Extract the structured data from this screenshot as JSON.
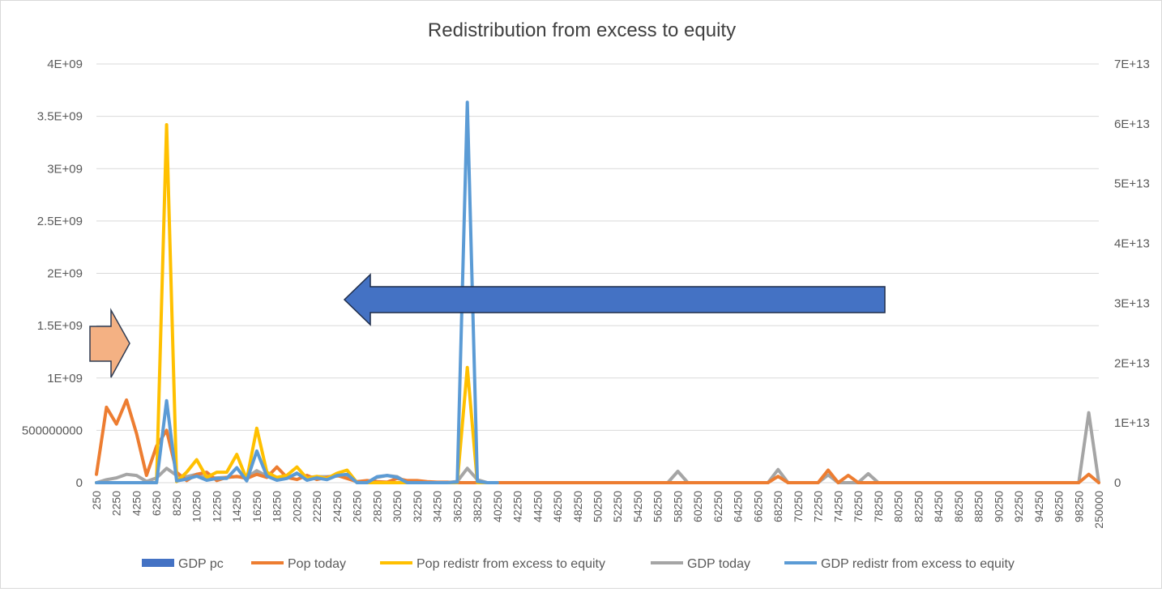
{
  "chart_data": {
    "type": "line",
    "title": "Redistribution from excess to equity",
    "xlabel": "",
    "ylabel": "",
    "legend_position": "bottom",
    "grid": true,
    "y_left": {
      "range": [
        0,
        4000000000
      ],
      "ticks": [
        0,
        500000000,
        1000000000,
        1500000000,
        2000000000,
        2500000000,
        3000000000,
        3500000000,
        4000000000
      ],
      "tick_labels": [
        "0",
        "500000000",
        "1E+09",
        "1.5E+09",
        "2E+09",
        "2.5E+09",
        "3E+09",
        "3.5E+09",
        "4E+09"
      ]
    },
    "y_right": {
      "range": [
        0,
        70000000000000
      ],
      "ticks": [
        0,
        10000000000000,
        20000000000000,
        30000000000000,
        40000000000000,
        50000000000000,
        60000000000000,
        70000000000000
      ],
      "tick_labels": [
        "0",
        "1E+13",
        "2E+13",
        "3E+13",
        "4E+13",
        "5E+13",
        "6E+13",
        "7E+13"
      ]
    },
    "x_tick_labels": [
      "250",
      "2250",
      "4250",
      "6250",
      "8250",
      "10250",
      "12250",
      "14250",
      "16250",
      "18250",
      "20250",
      "22250",
      "24250",
      "26250",
      "28250",
      "30250",
      "32250",
      "34250",
      "36250",
      "38250",
      "40250",
      "42250",
      "44250",
      "46250",
      "48250",
      "50250",
      "52250",
      "54250",
      "56250",
      "58250",
      "60250",
      "62250",
      "64250",
      "66250",
      "68250",
      "70250",
      "72250",
      "74250",
      "76250",
      "78250",
      "80250",
      "82250",
      "84250",
      "86250",
      "88250",
      "90250",
      "92250",
      "94250",
      "96250",
      "98250",
      "250000"
    ],
    "x_count": 101,
    "series": [
      {
        "name": "GDP pc",
        "axis": "left",
        "color": "#4472c4",
        "points": []
      },
      {
        "name": "Pop today",
        "axis": "left",
        "color": "#ed7d31",
        "points": [
          [
            0,
            80000000
          ],
          [
            1,
            720000000
          ],
          [
            2,
            560000000
          ],
          [
            3,
            790000000
          ],
          [
            4,
            470000000
          ],
          [
            5,
            70000000
          ],
          [
            6,
            350000000
          ],
          [
            7,
            500000000
          ],
          [
            8,
            100000000
          ],
          [
            9,
            20000000
          ],
          [
            10,
            80000000
          ],
          [
            11,
            100000000
          ],
          [
            12,
            20000000
          ],
          [
            13,
            50000000
          ],
          [
            14,
            60000000
          ],
          [
            15,
            40000000
          ],
          [
            16,
            80000000
          ],
          [
            17,
            50000000
          ],
          [
            18,
            150000000
          ],
          [
            19,
            50000000
          ],
          [
            20,
            30000000
          ],
          [
            21,
            70000000
          ],
          [
            22,
            30000000
          ],
          [
            23,
            50000000
          ],
          [
            24,
            70000000
          ],
          [
            25,
            40000000
          ],
          [
            26,
            10000000
          ],
          [
            27,
            20000000
          ],
          [
            28,
            10000000
          ],
          [
            29,
            5000000
          ],
          [
            30,
            40000000
          ],
          [
            31,
            20000000
          ],
          [
            32,
            20000000
          ],
          [
            33,
            10000000
          ],
          [
            34,
            5000000
          ],
          [
            35,
            5000000
          ],
          [
            36,
            0
          ],
          [
            37,
            0
          ],
          [
            38,
            0
          ],
          [
            39,
            0
          ],
          [
            40,
            0
          ],
          [
            41,
            0
          ],
          [
            42,
            0
          ],
          [
            43,
            0
          ],
          [
            44,
            0
          ],
          [
            45,
            0
          ],
          [
            46,
            0
          ],
          [
            47,
            0
          ],
          [
            48,
            0
          ],
          [
            49,
            0
          ],
          [
            50,
            0
          ],
          [
            51,
            0
          ],
          [
            52,
            0
          ],
          [
            53,
            0
          ],
          [
            54,
            0
          ],
          [
            55,
            0
          ],
          [
            56,
            0
          ],
          [
            57,
            0
          ],
          [
            58,
            0
          ],
          [
            59,
            0
          ],
          [
            60,
            0
          ],
          [
            61,
            0
          ],
          [
            62,
            0
          ],
          [
            63,
            0
          ],
          [
            64,
            0
          ],
          [
            65,
            0
          ],
          [
            66,
            0
          ],
          [
            67,
            0
          ],
          [
            68,
            60000000
          ],
          [
            69,
            0
          ],
          [
            70,
            0
          ],
          [
            71,
            0
          ],
          [
            72,
            0
          ],
          [
            73,
            120000000
          ],
          [
            74,
            0
          ],
          [
            75,
            70000000
          ],
          [
            76,
            0
          ],
          [
            77,
            0
          ],
          [
            78,
            0
          ],
          [
            79,
            0
          ],
          [
            80,
            0
          ],
          [
            81,
            0
          ],
          [
            82,
            0
          ],
          [
            83,
            0
          ],
          [
            84,
            0
          ],
          [
            85,
            0
          ],
          [
            86,
            0
          ],
          [
            87,
            0
          ],
          [
            88,
            0
          ],
          [
            89,
            0
          ],
          [
            90,
            0
          ],
          [
            91,
            0
          ],
          [
            92,
            0
          ],
          [
            93,
            0
          ],
          [
            94,
            0
          ],
          [
            95,
            0
          ],
          [
            96,
            0
          ],
          [
            97,
            0
          ],
          [
            98,
            0
          ],
          [
            99,
            80000000
          ],
          [
            100,
            0
          ]
        ]
      },
      {
        "name": "Pop redistr from excess to equity",
        "axis": "left",
        "color": "#ffc000",
        "points": [
          [
            0,
            0
          ],
          [
            1,
            0
          ],
          [
            2,
            0
          ],
          [
            3,
            0
          ],
          [
            4,
            0
          ],
          [
            5,
            0
          ],
          [
            6,
            0
          ],
          [
            7,
            3420000000
          ],
          [
            8,
            10000000
          ],
          [
            9,
            100000000
          ],
          [
            10,
            220000000
          ],
          [
            11,
            50000000
          ],
          [
            12,
            100000000
          ],
          [
            13,
            100000000
          ],
          [
            14,
            270000000
          ],
          [
            15,
            30000000
          ],
          [
            16,
            520000000
          ],
          [
            17,
            100000000
          ],
          [
            18,
            50000000
          ],
          [
            19,
            70000000
          ],
          [
            20,
            150000000
          ],
          [
            21,
            40000000
          ],
          [
            22,
            60000000
          ],
          [
            23,
            40000000
          ],
          [
            24,
            90000000
          ],
          [
            25,
            120000000
          ],
          [
            26,
            0
          ],
          [
            27,
            0
          ],
          [
            28,
            0
          ],
          [
            29,
            0
          ],
          [
            30,
            0
          ],
          [
            31,
            0
          ],
          [
            32,
            0
          ],
          [
            33,
            0
          ],
          [
            34,
            0
          ],
          [
            35,
            0
          ],
          [
            36,
            0
          ],
          [
            37,
            1100000000
          ],
          [
            38,
            0
          ],
          [
            39,
            0
          ],
          [
            40,
            0
          ]
        ]
      },
      {
        "name": "GDP today",
        "axis": "right",
        "color": "#a5a5a5",
        "points": [
          [
            0,
            0
          ],
          [
            1,
            500000000000
          ],
          [
            2,
            800000000000
          ],
          [
            3,
            1400000000000
          ],
          [
            4,
            1200000000000
          ],
          [
            5,
            200000000000
          ],
          [
            6,
            800000000000
          ],
          [
            7,
            2400000000000
          ],
          [
            8,
            1200000000000
          ],
          [
            9,
            1000000000000
          ],
          [
            10,
            1400000000000
          ],
          [
            11,
            800000000000
          ],
          [
            12,
            800000000000
          ],
          [
            13,
            900000000000
          ],
          [
            14,
            1000000000000
          ],
          [
            15,
            900000000000
          ],
          [
            16,
            2000000000000
          ],
          [
            17,
            1100000000000
          ],
          [
            18,
            700000000000
          ],
          [
            19,
            800000000000
          ],
          [
            20,
            1500000000000
          ],
          [
            21,
            900000000000
          ],
          [
            22,
            1000000000000
          ],
          [
            23,
            1000000000000
          ],
          [
            24,
            1100000000000
          ],
          [
            25,
            1300000000000
          ],
          [
            26,
            0
          ],
          [
            27,
            0
          ],
          [
            28,
            900000000000
          ],
          [
            29,
            1200000000000
          ],
          [
            30,
            1000000000000
          ],
          [
            31,
            0
          ],
          [
            32,
            0
          ],
          [
            33,
            0
          ],
          [
            34,
            0
          ],
          [
            35,
            0
          ],
          [
            36,
            200000000000
          ],
          [
            37,
            2400000000000
          ],
          [
            38,
            500000000000
          ],
          [
            39,
            0
          ],
          [
            40,
            0
          ],
          [
            41,
            0
          ],
          [
            42,
            0
          ],
          [
            43,
            0
          ],
          [
            44,
            0
          ],
          [
            45,
            0
          ],
          [
            46,
            0
          ],
          [
            47,
            0
          ],
          [
            48,
            0
          ],
          [
            49,
            0
          ],
          [
            50,
            0
          ],
          [
            51,
            0
          ],
          [
            52,
            0
          ],
          [
            53,
            0
          ],
          [
            54,
            0
          ],
          [
            55,
            0
          ],
          [
            56,
            0
          ],
          [
            57,
            0
          ],
          [
            58,
            1900000000000
          ],
          [
            59,
            0
          ],
          [
            60,
            0
          ],
          [
            61,
            0
          ],
          [
            62,
            0
          ],
          [
            63,
            0
          ],
          [
            64,
            0
          ],
          [
            65,
            0
          ],
          [
            66,
            0
          ],
          [
            67,
            0
          ],
          [
            68,
            2200000000000
          ],
          [
            69,
            0
          ],
          [
            70,
            0
          ],
          [
            71,
            0
          ],
          [
            72,
            0
          ],
          [
            73,
            1300000000000
          ],
          [
            74,
            0
          ],
          [
            75,
            0
          ],
          [
            76,
            0
          ],
          [
            77,
            1500000000000
          ],
          [
            78,
            0
          ],
          [
            79,
            0
          ],
          [
            80,
            0
          ],
          [
            81,
            0
          ],
          [
            82,
            0
          ],
          [
            83,
            0
          ],
          [
            84,
            0
          ],
          [
            85,
            0
          ],
          [
            86,
            0
          ],
          [
            87,
            0
          ],
          [
            88,
            0
          ],
          [
            89,
            0
          ],
          [
            90,
            0
          ],
          [
            91,
            0
          ],
          [
            92,
            0
          ],
          [
            93,
            0
          ],
          [
            94,
            0
          ],
          [
            95,
            0
          ],
          [
            96,
            0
          ],
          [
            97,
            0
          ],
          [
            98,
            0
          ],
          [
            99,
            11700000000000
          ],
          [
            100,
            0
          ]
        ]
      },
      {
        "name": "GDP redistr from excess to equity",
        "axis": "right",
        "color": "#5b9bd5",
        "points": [
          [
            0,
            0
          ],
          [
            1,
            0
          ],
          [
            2,
            0
          ],
          [
            3,
            0
          ],
          [
            4,
            0
          ],
          [
            5,
            0
          ],
          [
            6,
            0
          ],
          [
            7,
            13700000000000
          ],
          [
            8,
            300000000000
          ],
          [
            9,
            600000000000
          ],
          [
            10,
            1100000000000
          ],
          [
            11,
            400000000000
          ],
          [
            12,
            700000000000
          ],
          [
            13,
            700000000000
          ],
          [
            14,
            2500000000000
          ],
          [
            15,
            300000000000
          ],
          [
            16,
            5300000000000
          ],
          [
            17,
            1100000000000
          ],
          [
            18,
            400000000000
          ],
          [
            19,
            700000000000
          ],
          [
            20,
            1600000000000
          ],
          [
            21,
            400000000000
          ],
          [
            22,
            800000000000
          ],
          [
            23,
            500000000000
          ],
          [
            24,
            1200000000000
          ],
          [
            25,
            1400000000000
          ],
          [
            26,
            0
          ],
          [
            27,
            0
          ],
          [
            28,
            1000000000000
          ],
          [
            29,
            1200000000000
          ],
          [
            30,
            900000000000
          ],
          [
            31,
            0
          ],
          [
            32,
            0
          ],
          [
            33,
            0
          ],
          [
            34,
            0
          ],
          [
            35,
            0
          ],
          [
            36,
            100000000000
          ],
          [
            37,
            63600000000000
          ],
          [
            38,
            200000000000
          ],
          [
            39,
            0
          ],
          [
            40,
            0
          ]
        ]
      }
    ]
  }
}
